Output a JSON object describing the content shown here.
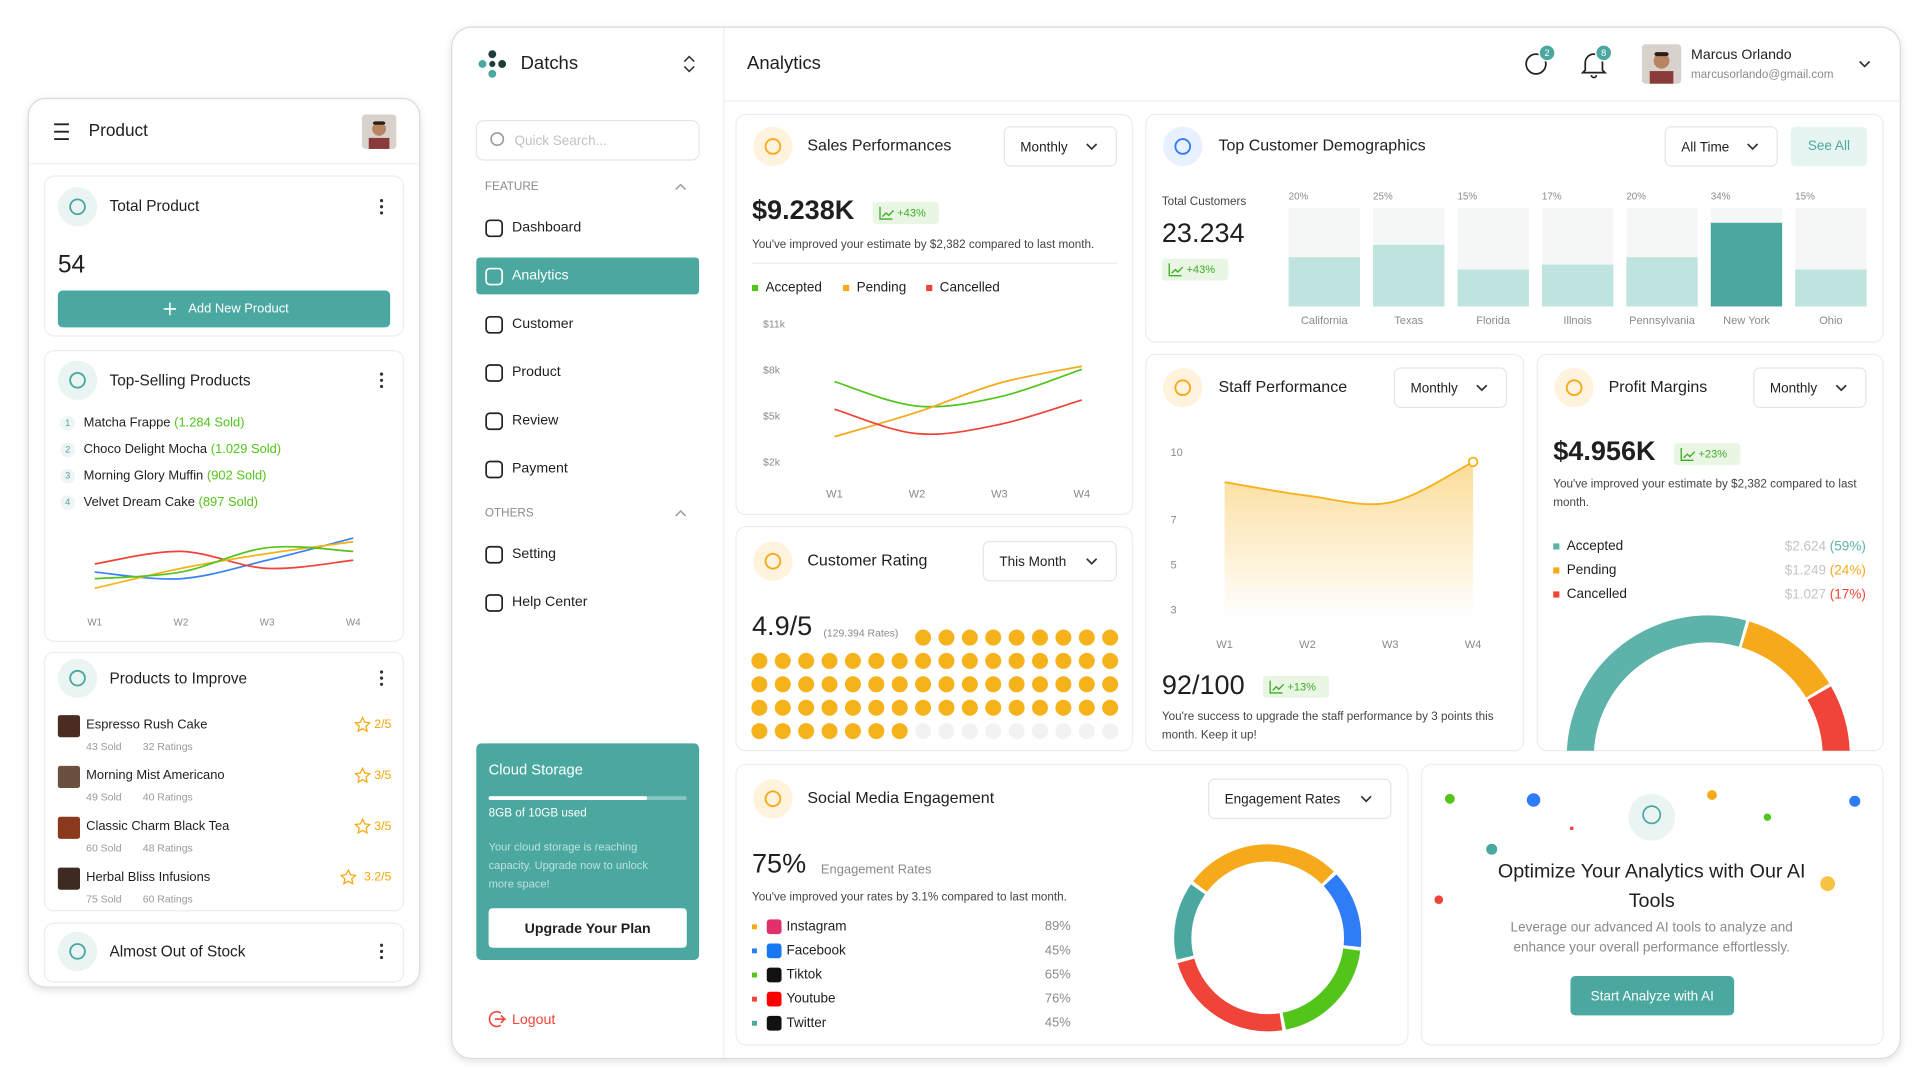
{
  "mobile": {
    "header": {
      "title": "Product"
    },
    "total_product": {
      "title": "Total Product",
      "value": "54",
      "button": "Add New Product"
    },
    "top_selling": {
      "title": "Top-Selling Products",
      "items": [
        {
          "rank": "1",
          "name": "Matcha Frappe",
          "sold": "(1.284 Sold)"
        },
        {
          "rank": "2",
          "name": "Choco Delight Mocha",
          "sold": "(1.029 Sold)"
        },
        {
          "rank": "3",
          "name": "Morning Glory Muffin",
          "sold": "(902 Sold)"
        },
        {
          "rank": "4",
          "name": "Velvet Dream Cake",
          "sold": "(897 Sold)"
        }
      ],
      "chart": {
        "type": "line",
        "categories": [
          "W1",
          "W2",
          "W3",
          "W4"
        ],
        "ylim": [
          0,
          10
        ],
        "series": [
          {
            "color": "#3b82f6",
            "values": [
              4.2,
              3.3,
              5.8,
              8.8
            ]
          },
          {
            "color": "#f04438",
            "values": [
              5.3,
              7,
              4.7,
              5.8
            ]
          },
          {
            "color": "#f6b21b",
            "values": [
              2,
              4.7,
              6.7,
              8.3
            ]
          },
          {
            "color": "#52c41a",
            "values": [
              3.3,
              4.2,
              7.5,
              7
            ]
          }
        ]
      }
    },
    "improve": {
      "title": "Products to Improve",
      "items": [
        {
          "name": "Espresso Rush Cake",
          "sold": "43 Sold",
          "ratings": "32 Ratings",
          "rating": "2/5"
        },
        {
          "name": "Morning Mist Americano",
          "sold": "49 Sold",
          "ratings": "40 Ratings",
          "rating": "3/5"
        },
        {
          "name": "Classic Charm Black Tea",
          "sold": "60 Sold",
          "ratings": "48 Ratings",
          "rating": "3/5"
        },
        {
          "name": "Herbal Bliss Infusions",
          "sold": "75 Sold",
          "ratings": "60 Ratings",
          "rating": "3.2/5"
        }
      ]
    },
    "stock": {
      "title": "Almost Out of Stock"
    }
  },
  "sidebar": {
    "brand": "Datchs",
    "search": "Quick Search...",
    "sections": [
      {
        "title": "FEATURE",
        "items": [
          "Dashboard",
          "Analytics",
          "Customer",
          "Product",
          "Review",
          "Payment"
        ]
      },
      {
        "title": "OTHERS",
        "items": [
          "Setting",
          "Help Center"
        ]
      }
    ],
    "storage": {
      "title": "Cloud Storage",
      "used_label": "8GB of 10GB used",
      "used": 8,
      "capacity": 10,
      "text": "Your cloud storage is reaching capacity. Upgrade now to unlock more space!",
      "button": "Upgrade Your Plan"
    },
    "logout": "Logout"
  },
  "header": {
    "title": "Analytics",
    "messages": "2",
    "notifications": "8",
    "user": {
      "name": "Marcus Orlando",
      "email": "marcusorlando@gmail.com"
    }
  },
  "sales": {
    "title": "Sales Performances",
    "period": "Monthly",
    "value": "$9.238K",
    "change": "+43%",
    "note": "You've improved your estimate by $2,382 compared to last month.",
    "chart": {
      "type": "line",
      "categories": [
        "W1",
        "W2",
        "W3",
        "W4"
      ],
      "ylim": [
        2000,
        11000
      ],
      "yticks": [
        {
          "value": 2000,
          "label": "$2k"
        },
        {
          "value": 5000,
          "label": "$5k"
        },
        {
          "value": 8000,
          "label": "$8k"
        },
        {
          "value": 11000,
          "label": "$11k"
        }
      ],
      "series": [
        {
          "name": "Accepted",
          "color": "#52c41a",
          "values": [
            7300,
            5700,
            6300,
            8100
          ]
        },
        {
          "name": "Pending",
          "color": "#f6a91b",
          "values": [
            3700,
            5300,
            7200,
            8300
          ]
        },
        {
          "name": "Cancelled",
          "color": "#f04438",
          "values": [
            5500,
            3900,
            4500,
            6100
          ]
        }
      ]
    }
  },
  "demographics": {
    "title": "Top Customer Demographics",
    "period": "All Time",
    "action": "See All",
    "total_label": "Total Customers",
    "total": "23.234",
    "change": "+43%",
    "chart": {
      "type": "bar",
      "categories": [
        "California",
        "Texas",
        "Florida",
        "Illnois",
        "Pennsylvania",
        "New York",
        "Ohio"
      ],
      "values": [
        20,
        25,
        15,
        17,
        20,
        34,
        15
      ],
      "value_labels": [
        "20%",
        "25%",
        "15%",
        "17%",
        "20%",
        "34%",
        "15%"
      ],
      "ylim": [
        0,
        40
      ],
      "color": "#bfe4e0",
      "highlight_color": "#4aa8a0"
    }
  },
  "rating": {
    "title": "Customer Rating",
    "period": "This Month",
    "value": "4.9/5",
    "count": "(129.394 Rates)",
    "dots": {
      "type": "dots",
      "filled": 64,
      "total": 73,
      "color": "#f6b21b"
    }
  },
  "staff": {
    "title": "Staff Performance",
    "period": "Monthly",
    "score": "92/100",
    "change": "+13%",
    "note": "You're success to upgrade the staff performance by 3 points this month. Keep it up!",
    "chart": {
      "type": "area",
      "categories": [
        "W1",
        "W2",
        "W3",
        "W4"
      ],
      "values": [
        8.7,
        8.1,
        7.8,
        9.6
      ],
      "ylim": [
        3,
        10
      ],
      "yticks": [
        3,
        5,
        7,
        10
      ],
      "color": "#f6b21b"
    }
  },
  "profit": {
    "title": "Profit Margins",
    "period": "Monthly",
    "value": "$4.956K",
    "change": "+23%",
    "note": "You've improved your estimate by $2,382 compared to last month.",
    "chart": {
      "type": "gauge",
      "categories": [
        "Accepted",
        "Pending",
        "Cancelled"
      ],
      "amounts": [
        "$2.624",
        "$1.249",
        "$1.027"
      ],
      "values": [
        59,
        24,
        17
      ],
      "value_labels": [
        "(59%)",
        "(24%)",
        "(17%)"
      ],
      "colors": [
        "#5db3aa",
        "#f6a91b",
        "#f04438"
      ]
    }
  },
  "social": {
    "title": "Social Media Engagement",
    "metric": "Engagement Rates",
    "value": "75%",
    "value_label": "Engagement Rates",
    "note": "You've improved your rates by 3.1% compared to last month.",
    "chart": {
      "type": "donut",
      "categories": [
        "Instagram",
        "Facebook",
        "Tiktok",
        "Youtube",
        "Twitter"
      ],
      "values": [
        89,
        45,
        65,
        76,
        45
      ],
      "value_labels": [
        "89%",
        "45%",
        "65%",
        "76%",
        "45%"
      ],
      "colors": [
        "#f6a91b",
        "#2f7df6",
        "#52c41a",
        "#f04438",
        "#4aa8a0"
      ]
    }
  },
  "ai": {
    "title": "Optimize Your Analytics with Our AI Tools",
    "text": "Leverage our advanced AI tools to analyze and enhance your overall performance effortlessly.",
    "button": "Start Analyze with AI"
  }
}
